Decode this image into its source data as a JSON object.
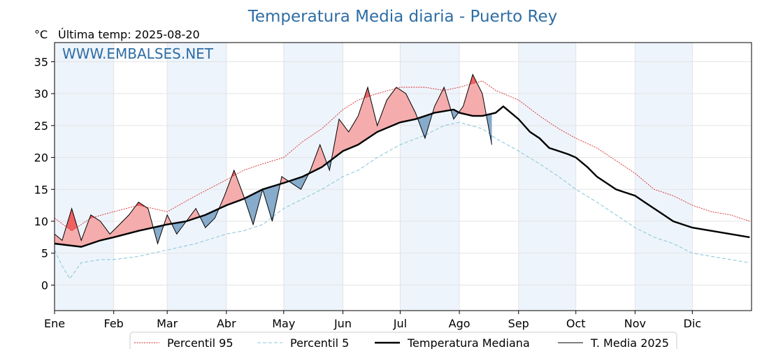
{
  "chart_data": {
    "type": "line",
    "title": "Temperatura Media diaria - Puerto Rey",
    "unit_label": "°C",
    "subtitle": "Última temp: 2025-08-20",
    "watermark": "WWW.EMBALSES.NET",
    "ylim": [
      -4,
      38
    ],
    "yticks": [
      0,
      5,
      10,
      15,
      20,
      25,
      30,
      35
    ],
    "months": [
      "Ene",
      "Feb",
      "Mar",
      "Abr",
      "May",
      "Jun",
      "Jul",
      "Ago",
      "Sep",
      "Oct",
      "Nov",
      "Dic"
    ],
    "month_start_days": [
      1,
      32,
      60,
      91,
      121,
      152,
      182,
      213,
      244,
      274,
      305,
      335
    ],
    "days_in_year": 365,
    "grid": true,
    "legend_position": "bottom",
    "colors": {
      "p95": "#d62728",
      "p5": "#8ec9dc",
      "median": "#000000",
      "current": "#000000",
      "above_fill": "#f4a8a8",
      "above_p95_fill": "#ee5555",
      "below_fill": "#7fa6c8",
      "below_p5_fill": "#2f5f8f",
      "title": "#2e6da4",
      "band": "#eef4fb"
    },
    "series": [
      {
        "name": "Percentil 95",
        "style": "dotted",
        "x": [
          1,
          10,
          20,
          32,
          45,
          60,
          75,
          91,
          100,
          110,
          121,
          131,
          141,
          152,
          160,
          170,
          182,
          195,
          205,
          213,
          225,
          232,
          244,
          255,
          265,
          274,
          285,
          295,
          305,
          315,
          325,
          335,
          345,
          355,
          365
        ],
        "values": [
          10.5,
          8.5,
          10.5,
          11.5,
          12.5,
          11.5,
          14,
          16.5,
          18,
          19,
          20,
          22.5,
          24.5,
          27.5,
          29,
          30,
          31,
          31,
          30.5,
          31,
          32,
          30.5,
          29,
          26.5,
          24.5,
          23,
          21.5,
          19.5,
          17.5,
          15,
          14,
          12.5,
          11.5,
          11,
          10
        ]
      },
      {
        "name": "Percentil 5",
        "style": "dashed",
        "x": [
          1,
          5,
          9,
          15,
          25,
          32,
          45,
          60,
          75,
          91,
          100,
          110,
          121,
          131,
          141,
          152,
          160,
          170,
          182,
          195,
          205,
          213,
          225,
          232,
          244,
          255,
          265,
          274,
          285,
          295,
          305,
          315,
          325,
          335,
          345,
          355,
          365
        ],
        "values": [
          5.5,
          3,
          1,
          3.5,
          4,
          4,
          4.5,
          5.5,
          6.5,
          8,
          8.5,
          9.5,
          12,
          13.5,
          15,
          17,
          18,
          20,
          22,
          23.5,
          25,
          25.5,
          24.5,
          23,
          21,
          19,
          17,
          15,
          13,
          11,
          9,
          7.5,
          6.5,
          5,
          4.5,
          4,
          3.5
        ]
      },
      {
        "name": "Temperatura Mediana",
        "style": "solid-thick",
        "x": [
          1,
          15,
          25,
          32,
          45,
          60,
          70,
          80,
          91,
          100,
          110,
          121,
          131,
          141,
          152,
          160,
          170,
          182,
          190,
          200,
          210,
          213,
          220,
          225,
          232,
          236,
          244,
          250,
          255,
          260,
          265,
          270,
          274,
          280,
          285,
          290,
          295,
          300,
          305,
          310,
          315,
          320,
          325,
          330,
          335,
          345,
          355,
          365
        ],
        "values": [
          6.5,
          6,
          7,
          7.5,
          8.5,
          9.5,
          10,
          11,
          12.5,
          13.5,
          15,
          16,
          17,
          18.5,
          21,
          22,
          24,
          25.5,
          26,
          27,
          27.5,
          27,
          26.5,
          26.5,
          27,
          28,
          26,
          24,
          23,
          21.5,
          21,
          20.5,
          20,
          18.5,
          17,
          16,
          15,
          14.5,
          14,
          13,
          12,
          11,
          10,
          9.5,
          9,
          8.5,
          8,
          7.5
        ]
      },
      {
        "name": "T. Media 2025",
        "style": "solid-thin",
        "x": [
          1,
          5,
          10,
          15,
          20,
          25,
          30,
          35,
          40,
          45,
          50,
          55,
          60,
          65,
          70,
          75,
          80,
          85,
          90,
          95,
          100,
          105,
          110,
          115,
          120,
          125,
          130,
          135,
          140,
          145,
          150,
          155,
          160,
          165,
          170,
          175,
          180,
          185,
          190,
          195,
          200,
          205,
          210,
          215,
          220,
          225,
          230
        ],
        "values": [
          8,
          7,
          12,
          7,
          11,
          10,
          8,
          9.5,
          11,
          13,
          12,
          6.5,
          11,
          8,
          10,
          12,
          9,
          10.5,
          14,
          18,
          14,
          9.5,
          15,
          10,
          17,
          16,
          15,
          18,
          22,
          18,
          26,
          24,
          26.5,
          31,
          25,
          29,
          31,
          30,
          27,
          23,
          28,
          31,
          26,
          28,
          33,
          30,
          22
        ]
      }
    ]
  }
}
